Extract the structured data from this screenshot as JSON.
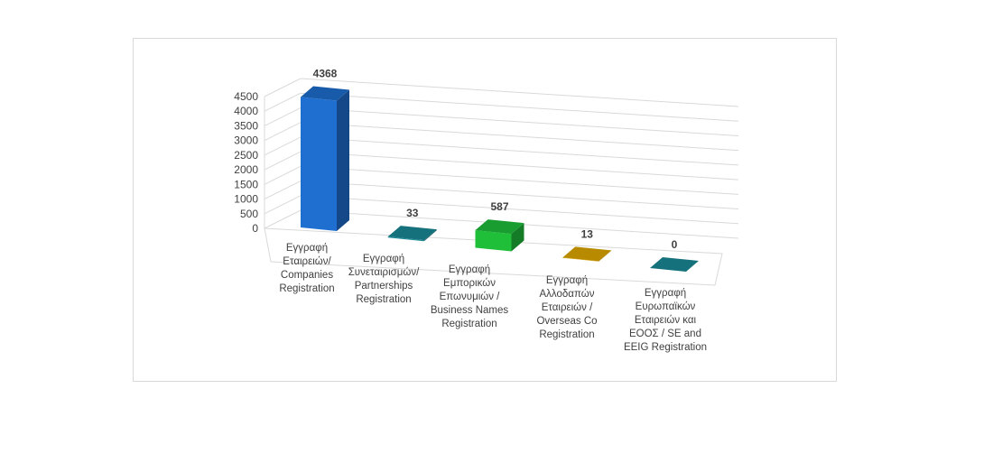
{
  "chart_data": {
    "type": "bar",
    "title": "",
    "xlabel": "",
    "ylabel": "",
    "ylim": [
      0,
      4500
    ],
    "yticks": [
      0,
      500,
      1000,
      1500,
      2000,
      2500,
      3000,
      3500,
      4000,
      4500
    ],
    "grid": true,
    "three_d": true,
    "categories": [
      [
        "Εγγραφή",
        "Εταιρειών/",
        "Companies",
        "Registration"
      ],
      [
        "Εγγραφή",
        "Συνεταιρισμών/",
        "Partnerships",
        "Registration"
      ],
      [
        "Εγγραφή",
        "Εμπορικών",
        "Επωνυμιών /",
        "Business Names",
        "Registration"
      ],
      [
        "Εγγραφή",
        "Αλλοδαπών",
        "Εταιρειών /",
        "Overseas Co",
        "Registration"
      ],
      [
        "Εγγραφή",
        "Ευρωπαϊκών",
        "Εταιρειών και",
        "ΕΟΟΣ / SE and",
        "EEIG Registration"
      ]
    ],
    "values": [
      4368,
      33,
      587,
      13,
      0
    ],
    "data_labels": [
      "4368",
      "33",
      "587",
      "13",
      "0"
    ],
    "colors": [
      "#1f6fd1",
      "#1a8a96",
      "#1fbf3a",
      "#e0a800",
      "#1a8a96"
    ]
  }
}
